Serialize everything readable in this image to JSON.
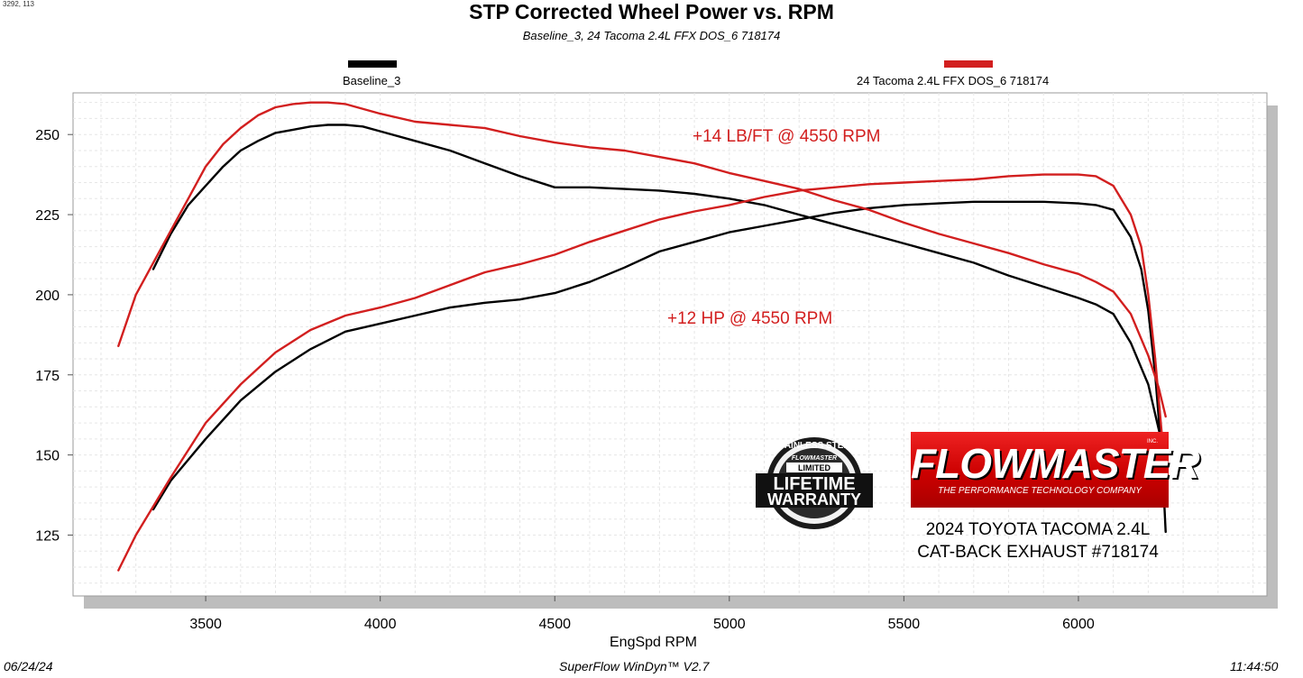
{
  "coords_readout": "3292, 113",
  "footer": {
    "date": "06/24/24",
    "software": "SuperFlow WinDyn™  V2.7",
    "time": "11:44:50"
  },
  "branding": {
    "logo_text": "FLOWMASTER",
    "logo_tagline": "THE PERFORMANCE TECHNOLOGY COMPANY",
    "logo_inc": "INC.",
    "badge_arc_text": "STAINLESS STEEL",
    "badge_brand": "FLOWMASTER",
    "badge_limited": "LIMITED",
    "badge_line1": "LIFETIME",
    "badge_line2": "WARRANTY",
    "vehicle_line1": "2024 TOYOTA TACOMA 2.4L",
    "vehicle_line2": "CAT-BACK EXHAUST #718174"
  },
  "colors": {
    "baseline": "#000000",
    "modified": "#d21f1f",
    "plot_bg": "#ffffff",
    "shadow": "#bdbdbd"
  },
  "chart_data": {
    "type": "line",
    "title": "STP Corrected Wheel Power vs. RPM",
    "subtitle": "Baseline_3, 24 Tacoma 2.4L FFX DOS_6 718174",
    "xlabel": "EngSpd  RPM",
    "ylabel": "",
    "xlim": [
      3120,
      6540
    ],
    "ylim": [
      106,
      263
    ],
    "x_ticks": [
      3500,
      4000,
      4500,
      5000,
      5500,
      6000
    ],
    "y_ticks": [
      125,
      150,
      175,
      200,
      225,
      250
    ],
    "grid": true,
    "legend_placement": "top",
    "legend": [
      "Baseline_3",
      "24 Tacoma 2.4L FFX DOS_6 718174"
    ],
    "annotations": [
      "+14 LB/FT @ 4550 RPM",
      "+12 HP @ 4550 RPM"
    ],
    "series": [
      {
        "name": "Baseline_3",
        "measure": "torque",
        "color": "#000000",
        "x": [
          3350,
          3400,
          3450,
          3500,
          3550,
          3600,
          3650,
          3700,
          3750,
          3800,
          3850,
          3900,
          3950,
          4000,
          4100,
          4200,
          4300,
          4400,
          4500,
          4600,
          4700,
          4800,
          4900,
          5000,
          5100,
          5200,
          5300,
          5400,
          5500,
          5600,
          5700,
          5800,
          5900,
          6000,
          6050,
          6100,
          6150,
          6200,
          6230,
          6250
        ],
        "y": [
          208,
          219,
          228,
          234,
          240,
          245,
          248,
          250.5,
          251.5,
          252.5,
          253,
          253,
          252.5,
          251,
          248,
          245,
          241,
          237,
          233.5,
          233.5,
          233,
          232.5,
          231.5,
          230,
          228,
          225,
          222,
          219,
          216,
          213,
          210,
          206,
          202.5,
          199,
          197,
          194,
          185,
          172,
          158,
          149
        ]
      },
      {
        "name": "Baseline_3",
        "measure": "power",
        "color": "#000000",
        "x": [
          3350,
          3400,
          3500,
          3600,
          3700,
          3800,
          3900,
          4000,
          4100,
          4200,
          4300,
          4400,
          4500,
          4600,
          4700,
          4800,
          4900,
          5000,
          5100,
          5200,
          5300,
          5400,
          5500,
          5600,
          5700,
          5800,
          5900,
          6000,
          6050,
          6100,
          6150,
          6180,
          6200,
          6220,
          6240,
          6250
        ],
        "y": [
          133,
          142,
          155,
          167,
          176,
          183,
          188.5,
          191,
          193.5,
          196,
          197.5,
          198.5,
          200.5,
          204,
          208.5,
          213.5,
          216.5,
          219.5,
          221.5,
          223.5,
          225.5,
          227,
          228,
          228.5,
          229,
          229,
          229,
          228.5,
          228,
          226.5,
          218,
          208,
          195,
          175,
          148,
          126
        ]
      },
      {
        "name": "24 Tacoma 2.4L FFX DOS_6 718174",
        "measure": "torque",
        "color": "#d21f1f",
        "x": [
          3250,
          3300,
          3350,
          3400,
          3450,
          3500,
          3550,
          3600,
          3650,
          3700,
          3750,
          3800,
          3850,
          3900,
          4000,
          4100,
          4200,
          4300,
          4400,
          4500,
          4600,
          4700,
          4800,
          4900,
          5000,
          5100,
          5200,
          5300,
          5400,
          5500,
          5600,
          5700,
          5800,
          5900,
          6000,
          6050,
          6100,
          6150,
          6200,
          6230,
          6250
        ],
        "y": [
          184,
          200,
          210,
          220,
          230,
          240,
          247,
          252,
          256,
          258.5,
          259.5,
          260,
          260,
          259.5,
          256.5,
          254,
          253,
          252,
          249.5,
          247.5,
          246,
          245,
          243,
          241,
          238,
          235.5,
          233,
          229.5,
          226.5,
          222.5,
          219,
          216,
          213,
          209.5,
          206.5,
          204,
          201,
          194,
          181,
          171,
          162
        ]
      },
      {
        "name": "24 Tacoma 2.4L FFX DOS_6 718174",
        "measure": "power",
        "color": "#d21f1f",
        "x": [
          3250,
          3300,
          3400,
          3500,
          3600,
          3700,
          3800,
          3900,
          4000,
          4100,
          4200,
          4300,
          4400,
          4500,
          4600,
          4700,
          4800,
          4900,
          5000,
          5100,
          5200,
          5300,
          5400,
          5500,
          5600,
          5700,
          5800,
          5900,
          6000,
          6050,
          6100,
          6150,
          6180,
          6200,
          6220,
          6240,
          6250
        ],
        "y": [
          114,
          125,
          143,
          160,
          172,
          182,
          189,
          193.5,
          196,
          199,
          203,
          207,
          209.5,
          212.5,
          216.5,
          220,
          223.5,
          226,
          228,
          230.5,
          232.5,
          233.5,
          234.5,
          235,
          235.5,
          236,
          237,
          237.5,
          237.5,
          237,
          234,
          225,
          215,
          200,
          180,
          155,
          137
        ]
      }
    ]
  }
}
